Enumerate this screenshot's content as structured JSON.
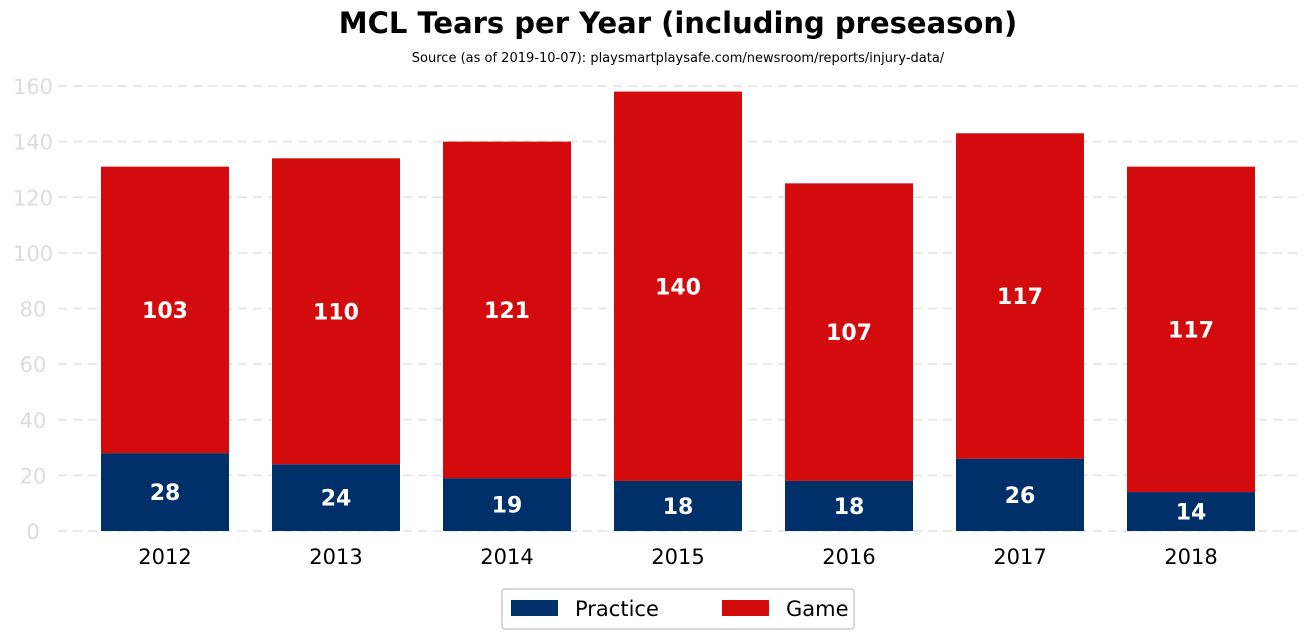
{
  "chart_data": {
    "type": "bar",
    "stacked": true,
    "title": "MCL Tears per Year (including preseason)",
    "subtitle": "Source (as of 2019-10-07): playsmartplaysafe.com/newsroom/reports/injury-data/",
    "categories": [
      "2012",
      "2013",
      "2014",
      "2015",
      "2016",
      "2017",
      "2018"
    ],
    "series": [
      {
        "name": "Practice",
        "color": "#003069",
        "values": [
          28,
          24,
          19,
          18,
          18,
          26,
          14
        ]
      },
      {
        "name": "Game",
        "color": "#d30b0d",
        "values": [
          103,
          110,
          121,
          140,
          107,
          117,
          117
        ]
      }
    ],
    "yticks": [
      "0",
      "20",
      "40",
      "60",
      "80",
      "100",
      "120",
      "140",
      "160"
    ],
    "ylim": [
      0,
      160
    ],
    "grid": true,
    "legend": "bottom-center"
  }
}
